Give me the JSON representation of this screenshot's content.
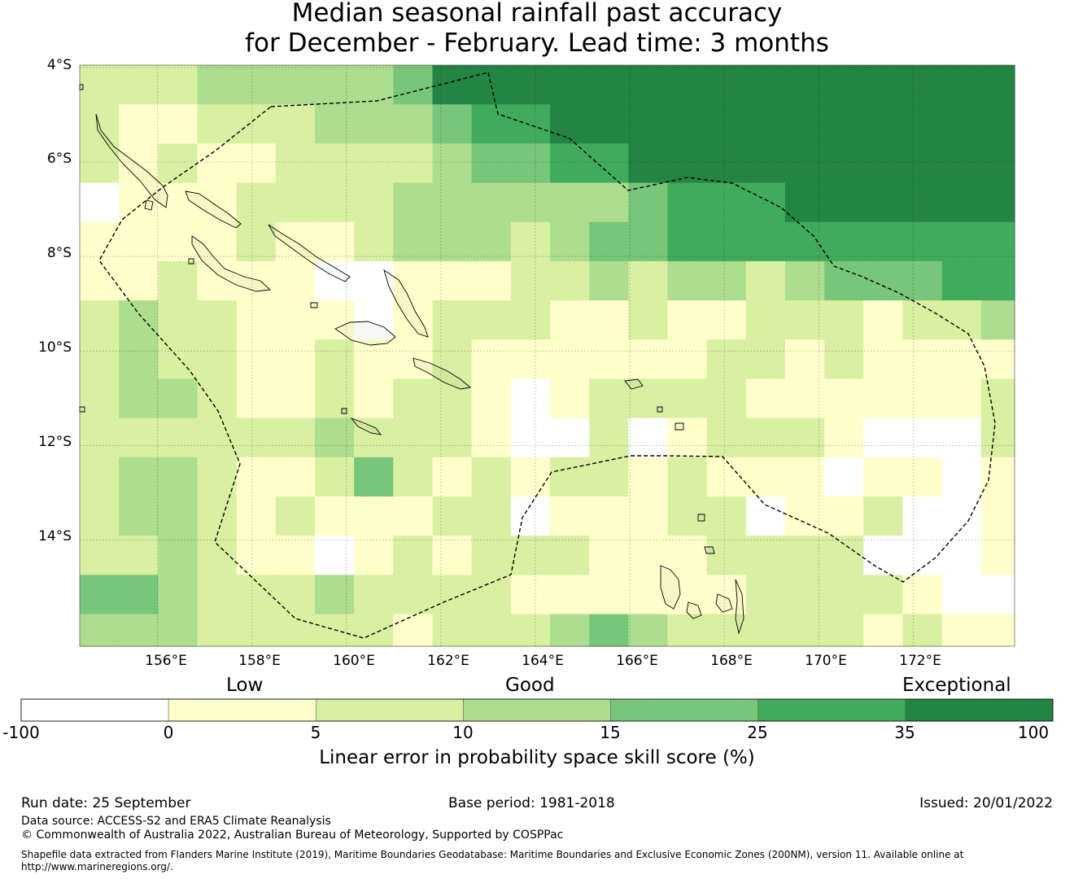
{
  "title": {
    "line1": "Median seasonal rainfall past accuracy",
    "line2": "for December - February. Lead time: 3 months"
  },
  "map": {
    "lat_labels": [
      "4°S",
      "6°S",
      "8°S",
      "10°S",
      "12°S",
      "14°S"
    ],
    "lon_labels": [
      "156°E",
      "158°E",
      "160°E",
      "162°E",
      "164°E",
      "166°E",
      "168°E",
      "170°E",
      "172°E"
    ],
    "lat_range": [
      -16.25,
      -3.95
    ],
    "lon_range": [
      154.35,
      174.15
    ]
  },
  "chart_data": {
    "type": "heatmap",
    "title": "Median seasonal rainfall past accuracy for December - February. Lead time: 3 months",
    "xlabel": "Longitude",
    "ylabel": "Latitude",
    "x_range": [
      154.35,
      174.15
    ],
    "y_range": [
      -16.25,
      -3.95
    ],
    "cell_size_deg": 0.83,
    "grid_note": "24 columns x 22 rows of skill-score class indices (0..6), row 0 = northernmost",
    "class_bounds": [
      -100,
      0,
      5,
      10,
      15,
      25,
      35,
      100
    ],
    "grid": [
      "22233333466666666666666666",
      "2112223334556666666666666",
      "212112222344556666666666",
      "01112222333333455566666",
      "11112112333234455555555",
      "112111001112232332344455",
      "2322111012221121122212232",
      "2322112112111111221211112",
      "23321121221012222111111213",
      "22222232221002012221000212",
      "233211242121221211101101",
      "233212111220111220112001",
      "223211012122211122220001",
      "4432223222211111122221000",
      "33322222122234322222121",
      "422312322122222112221122221",
      "33232111222224244344321",
      "44334321211224343344423",
      "43343321222242433433423",
      "423433312111244423442322",
      "3222233312111222443223453",
      "4224433232223441401423021"
    ]
  },
  "colorbar": {
    "category_labels": [
      "Low",
      "Good",
      "Exceptional"
    ],
    "ticks": [
      "-100",
      "0",
      "5",
      "10",
      "15",
      "25",
      "35",
      "100"
    ],
    "colors": [
      "#ffffff",
      "#ffffcc",
      "#d9f0a3",
      "#addd8e",
      "#78c679",
      "#41ab5d",
      "#238443"
    ],
    "xlabel": "Linear error in probability space skill score (%)"
  },
  "footer": {
    "run_date": "Run date: 25 September",
    "base_period": "Base period: 1981-2018",
    "issued": "Issued: 20/01/2022",
    "data_source": "Data source: ACCESS-S2 and ERA5 Climate Reanalysis",
    "copyright": "© Commonwealth of Australia 2022, Australian Bureau of Meteorology, Supported by COSPPac",
    "shapefile_line1": "Shapefile data extracted from Flanders Marine Institute (2019), Maritime Boundaries Geodatabase: Maritime Boundaries and Exclusive Economic Zones (200NM), version 11. Available online at",
    "shapefile_line2": "http://www.marineregions.org/."
  }
}
